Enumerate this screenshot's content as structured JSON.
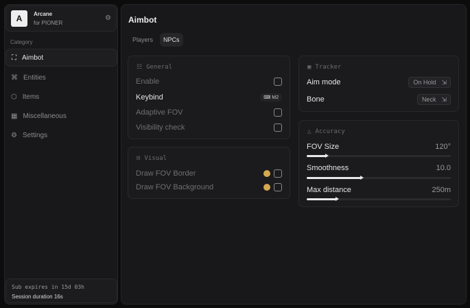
{
  "app": {
    "logo_letter": "A",
    "name": "Arcane",
    "subtitle": "for PIONER"
  },
  "sidebar": {
    "category_label": "Category",
    "items": [
      {
        "label": "Aimbot",
        "icon": "crosshair-icon",
        "active": true
      },
      {
        "label": "Entities",
        "icon": "entities-icon",
        "active": false
      },
      {
        "label": "Items",
        "icon": "cube-icon",
        "active": false
      },
      {
        "label": "Miscellaneous",
        "icon": "misc-icon",
        "active": false
      },
      {
        "label": "Settings",
        "icon": "gear-icon",
        "active": false
      }
    ],
    "footer": {
      "subscription": "Sub expires in 15d 03h",
      "session": "Session duration 16s"
    }
  },
  "main": {
    "title": "Aimbot",
    "tabs": [
      {
        "label": "Players",
        "active": false
      },
      {
        "label": "NPCs",
        "active": true
      }
    ],
    "general": {
      "title": "General",
      "enable": "Enable",
      "keybind": "Keybind",
      "keybind_value": "M2",
      "adaptive_fov": "Adaptive FOV",
      "visibility_check": "Visibility check"
    },
    "visual": {
      "title": "Visual",
      "draw_fov_border": "Draw FOV Border",
      "draw_fov_background": "Draw FOV Background",
      "swatch_color": "#d6a94f"
    },
    "tracker": {
      "title": "Tracker",
      "aim_mode": "Aim mode",
      "aim_mode_value": "On Hold",
      "bone": "Bone",
      "bone_value": "Neck"
    },
    "accuracy": {
      "title": "Accuracy",
      "fov_size": "FOV Size",
      "fov_size_value": "120°",
      "fov_size_fraction": 0.14,
      "smoothness": "Smoothness",
      "smoothness_value": "10.0",
      "smoothness_fraction": 0.38,
      "max_distance": "Max distance",
      "max_distance_value": "250m",
      "max_distance_fraction": 0.21
    }
  }
}
